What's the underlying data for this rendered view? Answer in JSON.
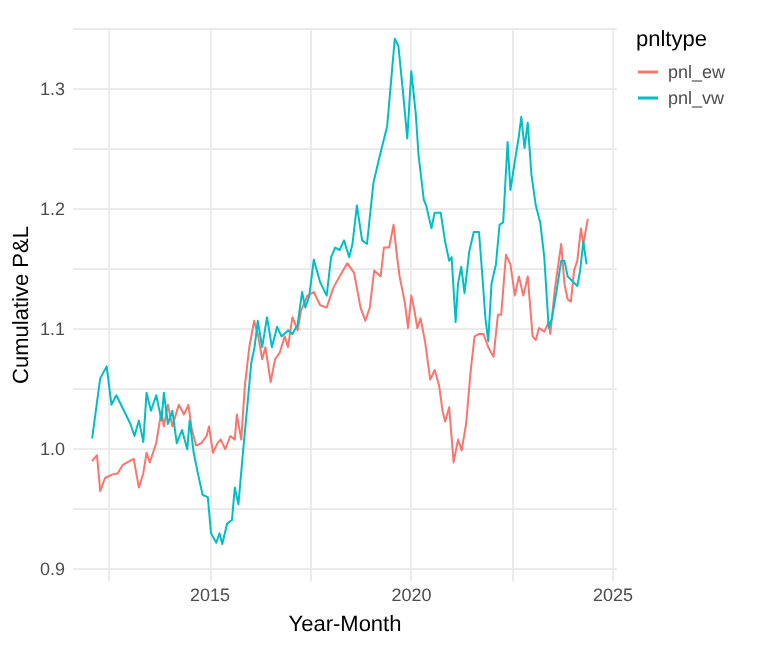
{
  "chart_data": {
    "type": "line",
    "xlabel": "Year-Month",
    "ylabel": "Cumulative P&L",
    "legend_title": "pnltype",
    "legend": "right",
    "grid": true,
    "line_style": "solid",
    "xlim": [
      2011.6,
      2025.1
    ],
    "xticks": [
      {
        "value": 2012.5,
        "label": null
      },
      2015,
      {
        "value": 2017.5,
        "label": null
      },
      2020,
      {
        "value": 2022.5,
        "label": null
      },
      2025
    ],
    "ylim": [
      0.89,
      1.35
    ],
    "yticks": [
      0.9,
      {
        "value": 0.95,
        "label": null
      },
      {
        "value": 1,
        "label": "1.0"
      },
      {
        "value": 1.05,
        "label": null
      },
      1.1,
      {
        "value": 1.15,
        "label": null
      },
      1.2,
      {
        "value": 1.25,
        "label": null
      },
      1.3,
      {
        "value": 1.35,
        "label": null
      }
    ],
    "series": [
      {
        "name": "pnl_ew",
        "color": "#f8766d",
        "x": [
          2012.1,
          2012.22,
          2012.3,
          2012.42,
          2012.61,
          2012.74,
          2012.86,
          2012.97,
          2013.13,
          2013.26,
          2013.37,
          2013.45,
          2013.53,
          2013.69,
          2013.82,
          2013.88,
          2013.98,
          2014.09,
          2014.25,
          2014.38,
          2014.49,
          2014.57,
          2014.68,
          2014.81,
          2014.94,
          2015.0,
          2015.1,
          2015.21,
          2015.29,
          2015.4,
          2015.53,
          2015.64,
          2015.69,
          2015.8,
          2015.89,
          2016.0,
          2016.12,
          2016.21,
          2016.32,
          2016.4,
          2016.53,
          2016.64,
          2016.75,
          2016.88,
          2016.96,
          2017.07,
          2017.2,
          2017.28,
          2017.44,
          2017.6,
          2017.76,
          2017.92,
          2018.08,
          2018.24,
          2018.43,
          2018.6,
          2018.76,
          2018.88,
          2018.99,
          2019.1,
          2019.26,
          2019.34,
          2019.47,
          2019.58,
          2019.65,
          2019.73,
          2019.86,
          2019.94,
          2020.02,
          2020.09,
          2020.17,
          2020.25,
          2020.36,
          2020.49,
          2020.6,
          2020.71,
          2020.8,
          2020.86,
          2020.96,
          2021.07,
          2021.18,
          2021.27,
          2021.38,
          2021.49,
          2021.59,
          2021.7,
          2021.81,
          2021.93,
          2022.06,
          2022.17,
          2022.25,
          2022.37,
          2022.48,
          2022.59,
          2022.69,
          2022.8,
          2022.91,
          2023.03,
          2023.11,
          2023.19,
          2023.32,
          2023.43,
          2023.47,
          2023.58,
          2023.74,
          2023.82,
          2023.9,
          2023.98,
          2024.06,
          2024.14,
          2024.23,
          2024.29,
          2024.4
        ],
        "values": [
          0.989,
          0.994,
          0.964,
          0.975,
          0.978,
          0.979,
          0.986,
          0.988,
          0.991,
          0.967,
          0.979,
          0.996,
          0.988,
          1.004,
          1.031,
          1.018,
          1.036,
          1.018,
          1.036,
          1.028,
          1.036,
          1.016,
          1.002,
          1.004,
          1.01,
          1.018,
          0.996,
          1.004,
          1.007,
          0.999,
          1.01,
          1.007,
          1.028,
          1.007,
          1.052,
          1.084,
          1.106,
          1.095,
          1.074,
          1.084,
          1.055,
          1.074,
          1.079,
          1.093,
          1.084,
          1.109,
          1.098,
          1.114,
          1.127,
          1.13,
          1.119,
          1.117,
          1.133,
          1.143,
          1.154,
          1.146,
          1.117,
          1.106,
          1.117,
          1.148,
          1.143,
          1.167,
          1.167,
          1.186,
          1.164,
          1.143,
          1.121,
          1.1,
          1.127,
          1.116,
          1.1,
          1.108,
          1.089,
          1.057,
          1.065,
          1.052,
          1.03,
          1.022,
          1.034,
          0.988,
          1.007,
          0.998,
          1.02,
          1.063,
          1.093,
          1.095,
          1.095,
          1.084,
          1.076,
          1.111,
          1.111,
          1.161,
          1.153,
          1.127,
          1.143,
          1.127,
          1.143,
          1.093,
          1.09,
          1.1,
          1.097,
          1.105,
          1.095,
          1.132,
          1.17,
          1.137,
          1.124,
          1.122,
          1.148,
          1.156,
          1.183,
          1.17,
          1.191
        ]
      },
      {
        "name": "pnl_vw",
        "color": "#00bfc4",
        "x": [
          2012.1,
          2012.3,
          2012.46,
          2012.58,
          2012.7,
          2012.89,
          2013.05,
          2013.15,
          2013.26,
          2013.37,
          2013.45,
          2013.56,
          2013.69,
          2013.82,
          2013.88,
          2013.98,
          2014.09,
          2014.2,
          2014.33,
          2014.46,
          2014.52,
          2014.62,
          2014.73,
          2014.84,
          2014.97,
          2015.05,
          2015.18,
          2015.26,
          2015.33,
          2015.45,
          2015.57,
          2015.64,
          2015.73,
          2015.85,
          2015.97,
          2016.05,
          2016.13,
          2016.21,
          2016.32,
          2016.44,
          2016.56,
          2016.69,
          2016.8,
          2016.96,
          2017.07,
          2017.2,
          2017.31,
          2017.39,
          2017.49,
          2017.6,
          2017.76,
          2017.92,
          2018.03,
          2018.13,
          2018.24,
          2018.35,
          2018.48,
          2018.56,
          2018.67,
          2018.8,
          2018.92,
          2019.08,
          2019.27,
          2019.42,
          2019.61,
          2019.7,
          2019.81,
          2019.92,
          2020.02,
          2020.13,
          2020.2,
          2020.33,
          2020.39,
          2020.52,
          2020.6,
          2020.75,
          2020.86,
          2020.96,
          2021.02,
          2021.12,
          2021.18,
          2021.26,
          2021.34,
          2021.46,
          2021.57,
          2021.7,
          2021.78,
          2021.86,
          2021.93,
          2022.01,
          2022.12,
          2022.21,
          2022.3,
          2022.41,
          2022.48,
          2022.59,
          2022.69,
          2022.75,
          2022.83,
          2022.91,
          2023.0,
          2023.11,
          2023.22,
          2023.32,
          2023.43,
          2023.51,
          2023.63,
          2023.74,
          2023.82,
          2023.9,
          2023.99,
          2024.14,
          2024.21,
          2024.29,
          2024.37
        ],
        "values": [
          1.008,
          1.058,
          1.068,
          1.036,
          1.044,
          1.031,
          1.02,
          1.01,
          1.023,
          1.005,
          1.046,
          1.031,
          1.044,
          1.023,
          1.046,
          1.02,
          1.031,
          1.004,
          1.015,
          0.999,
          1.023,
          0.996,
          0.978,
          0.961,
          0.959,
          0.929,
          0.921,
          0.929,
          0.92,
          0.937,
          0.94,
          0.967,
          0.953,
          0.999,
          1.042,
          1.071,
          1.084,
          1.106,
          1.084,
          1.109,
          1.084,
          1.101,
          1.093,
          1.098,
          1.095,
          1.103,
          1.13,
          1.117,
          1.127,
          1.157,
          1.138,
          1.127,
          1.159,
          1.167,
          1.165,
          1.173,
          1.159,
          1.17,
          1.202,
          1.173,
          1.17,
          1.221,
          1.248,
          1.268,
          1.341,
          1.335,
          1.298,
          1.258,
          1.314,
          1.279,
          1.244,
          1.207,
          1.202,
          1.183,
          1.196,
          1.196,
          1.172,
          1.156,
          1.159,
          1.105,
          1.137,
          1.151,
          1.129,
          1.164,
          1.18,
          1.18,
          1.145,
          1.108,
          1.089,
          1.137,
          1.153,
          1.186,
          1.188,
          1.255,
          1.215,
          1.239,
          1.26,
          1.276,
          1.25,
          1.271,
          1.228,
          1.202,
          1.188,
          1.159,
          1.1,
          1.108,
          1.132,
          1.156,
          1.156,
          1.143,
          1.14,
          1.135,
          1.148,
          1.172,
          1.153
        ]
      }
    ]
  }
}
